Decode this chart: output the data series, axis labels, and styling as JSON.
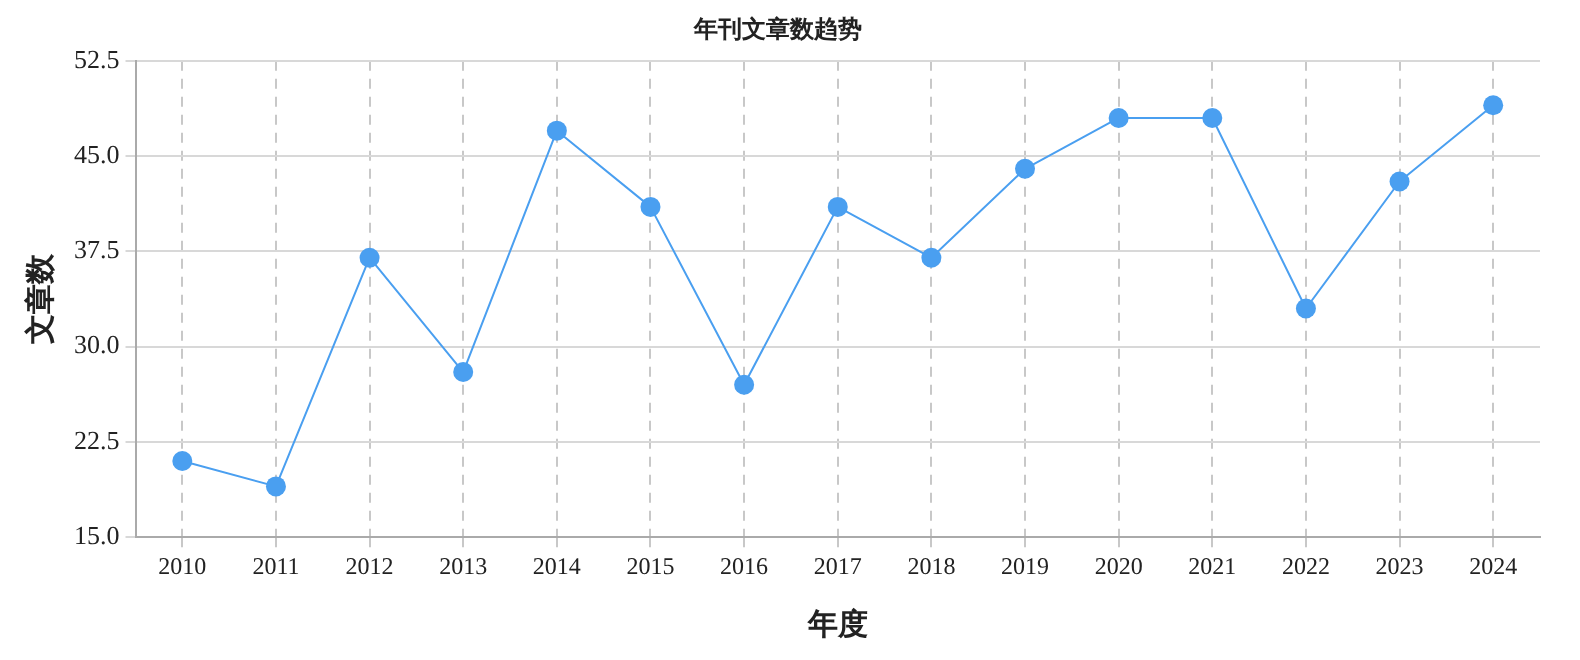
{
  "chart_data": {
    "type": "line",
    "title": "年刊文章数趋势",
    "xlabel": "年度",
    "ylabel": "文章数",
    "categories": [
      "2010",
      "2011",
      "2012",
      "2013",
      "2014",
      "2015",
      "2016",
      "2017",
      "2018",
      "2019",
      "2020",
      "2021",
      "2022",
      "2023",
      "2024"
    ],
    "series": [
      {
        "color": "#4a9ff0",
        "values": [
          21,
          19,
          37,
          28,
          47,
          41,
          27,
          41,
          37,
          44,
          48,
          48,
          33,
          43,
          49
        ]
      }
    ],
    "ylim": [
      15,
      52.5
    ],
    "yticks": [
      {
        "value": 15,
        "label": "15.0"
      },
      {
        "value": 22.5,
        "label": "22.5"
      },
      {
        "value": 30,
        "label": "30.0"
      },
      {
        "value": 37.5,
        "label": "37.5"
      },
      {
        "value": 45,
        "label": "45.0"
      },
      {
        "value": 52.5,
        "label": "52.5"
      }
    ],
    "grid": true,
    "legend": false,
    "marker": "circle",
    "line_style": "solid"
  }
}
